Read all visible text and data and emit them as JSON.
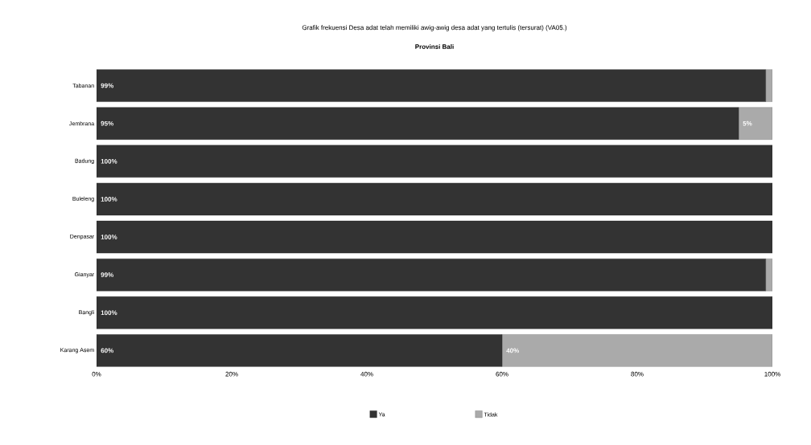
{
  "chart_data": {
    "type": "bar",
    "orientation": "horizontal",
    "stacked": true,
    "title": "Grafik frekuensi Desa adat telah memiliki awig-awig desa adat yang tertulis (tersurat) (VA05.)",
    "subtitle": "Provinsi Bali",
    "categories": [
      "Tabanan",
      "Jembrana",
      "Badung",
      "Buleleng",
      "Denpasar",
      "Gianyar",
      "Bangli",
      "Karang Asem"
    ],
    "series": [
      {
        "name": "Ya",
        "color": "#333333",
        "values": [
          99,
          95,
          100,
          100,
          100,
          99,
          100,
          60
        ],
        "value_labels": [
          "99%",
          "95%",
          "100%",
          "100%",
          "100%",
          "99%",
          "100%",
          "60%"
        ]
      },
      {
        "name": "Tidak",
        "color": "#aaaaaa",
        "values": [
          1,
          5,
          0,
          0,
          0,
          1,
          0,
          40
        ],
        "value_labels": [
          null,
          "5%",
          null,
          null,
          null,
          null,
          null,
          "40%"
        ]
      }
    ],
    "xlim": [
      0,
      100
    ],
    "xticks": [
      {
        "value": 0,
        "label": "0%"
      },
      {
        "value": 20,
        "label": "20%"
      },
      {
        "value": 40,
        "label": "40%"
      },
      {
        "value": 60,
        "label": "60%"
      },
      {
        "value": 80,
        "label": "80%"
      },
      {
        "value": 100,
        "label": "100%"
      }
    ],
    "legend": "bottom",
    "grid": false
  }
}
